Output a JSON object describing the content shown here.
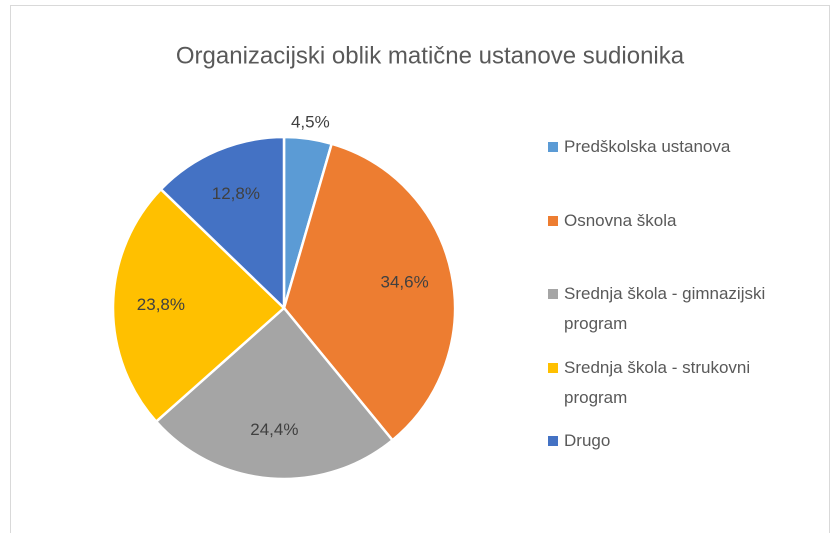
{
  "chart_data": {
    "type": "pie",
    "title": "Organizacijski oblik matične ustanove sudionika",
    "categories": [
      "Predškolska ustanova",
      "Osnovna škola",
      "Srednja škola - gimnazijski program",
      "Srednja škola - strukovni program",
      "Drugo"
    ],
    "values": [
      4.5,
      34.6,
      24.4,
      23.8,
      12.8
    ],
    "value_labels": [
      "4,5%",
      "34,6%",
      "24,4%",
      "23,8%",
      "12,8%"
    ],
    "colors": [
      "#5B9BD5",
      "#ED7D31",
      "#A5A5A5",
      "#FFC000",
      "#4472C4"
    ],
    "legend": "right"
  }
}
